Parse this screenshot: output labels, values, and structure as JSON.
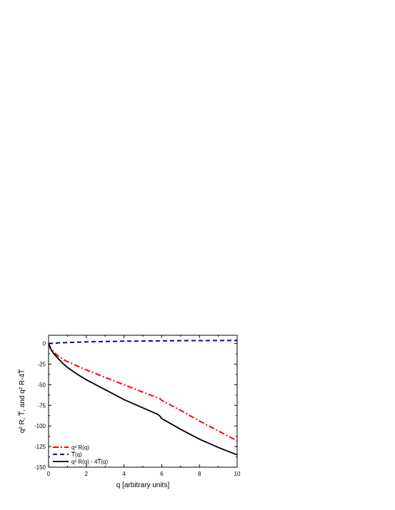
{
  "chart_data": {
    "type": "line",
    "title": "",
    "xlabel": "q [arbitrary units]",
    "ylabel": "q² R, T̅, and q² R-4T̅",
    "xlim": [
      0,
      10
    ],
    "ylim": [
      -150,
      10
    ],
    "xticks": [
      0,
      2,
      4,
      6,
      8,
      10
    ],
    "yticks": [
      0,
      -25,
      -50,
      -75,
      -100,
      -125,
      -150
    ],
    "xtick_labels": [
      "0",
      "2",
      "4",
      "6",
      "8",
      "10"
    ],
    "ytick_labels": [
      "0",
      "-25",
      "-50",
      "-75",
      "-100",
      "-125",
      "-150"
    ],
    "grid": false,
    "legend_position": "bottom-left",
    "series": [
      {
        "name": "q² R(q)",
        "color": "#ff0000",
        "style": "dash-dot",
        "x": [
          0,
          0.1,
          0.2,
          0.3,
          0.5,
          0.75,
          1,
          1.5,
          2,
          3,
          4,
          5,
          5.8,
          5.9,
          6,
          7,
          8,
          9,
          10
        ],
        "y": [
          0,
          -5,
          -8,
          -11,
          -15,
          -19,
          -22,
          -27,
          -32,
          -41,
          -50,
          -59,
          -66,
          -67,
          -69,
          -81,
          -94,
          -106,
          -118
        ]
      },
      {
        "name": "T̅(q)",
        "color": "#0000cc",
        "style": "dashed",
        "x": [
          0,
          0.5,
          1,
          1.5,
          2,
          3,
          4,
          5,
          6,
          7,
          8,
          9,
          10
        ],
        "y": [
          0,
          0.7,
          1.2,
          1.6,
          2,
          2.4,
          2.8,
          3.0,
          3.2,
          3.4,
          3.5,
          3.6,
          3.7
        ]
      },
      {
        "name": "q² R(q) - 4T̅(q)",
        "color": "#000000",
        "style": "solid",
        "x": [
          0,
          0.1,
          0.2,
          0.3,
          0.5,
          0.75,
          1,
          1.5,
          2,
          3,
          4,
          5,
          5.8,
          5.9,
          6,
          7,
          8,
          9,
          10
        ],
        "y": [
          0,
          -6,
          -10,
          -13,
          -18,
          -24,
          -29,
          -37,
          -44,
          -56,
          -68,
          -78,
          -86,
          -88,
          -91,
          -104,
          -116,
          -126,
          -135
        ]
      }
    ]
  }
}
